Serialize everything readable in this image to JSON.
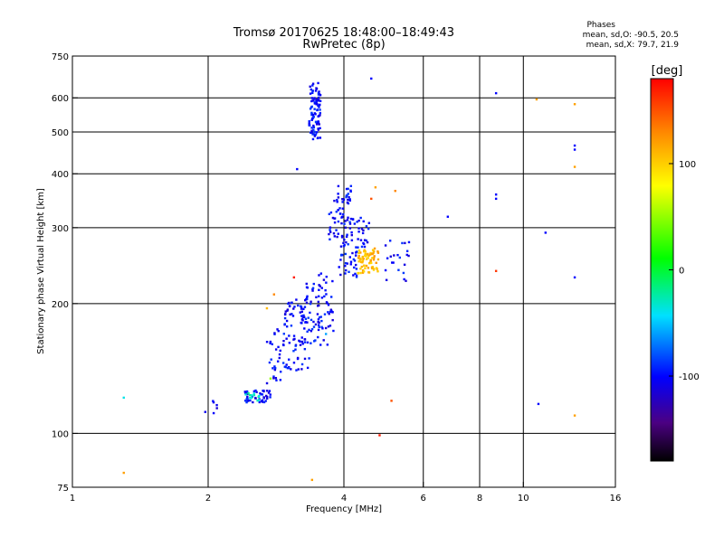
{
  "chart_data": {
    "type": "scatter",
    "title": "Tromsø 20170625 18:48:00–18:49:43",
    "subtitle": "RwPretec (8p)",
    "xlabel": "Frequency [MHz]",
    "ylabel": "Stationary phase Virtual Height [km]",
    "x_scale": "log",
    "y_scale": "log",
    "xlim": [
      1,
      16
    ],
    "ylim": [
      75,
      750
    ],
    "x_ticks": [
      1,
      2,
      4,
      6,
      8,
      10,
      16
    ],
    "y_ticks": [
      75,
      100,
      200,
      300,
      400,
      500,
      600,
      750
    ],
    "grid_x": [
      2,
      4,
      6,
      8,
      10
    ],
    "grid_y": [
      100,
      200,
      300,
      400,
      500,
      600
    ],
    "grid": true,
    "stats": {
      "heading": "Phases",
      "line1": "mean, sd,O: -90.5, 20.5",
      "line2": "mean, sd,X:  79.7, 21.9"
    },
    "colorbar": {
      "label": "[deg]",
      "range": [
        -180,
        180
      ],
      "ticks": [
        100,
        0,
        -100
      ],
      "tick_labels": [
        "100",
        "0",
        "-100"
      ]
    },
    "point_groups": [
      {
        "x": [
          3.35,
          3.55
        ],
        "y": [
          480,
          650
        ],
        "n": 95,
        "phase": -100
      },
      {
        "x": [
          3.85,
          4.15
        ],
        "y": [
          320,
          390
        ],
        "n": 20,
        "phase": -100
      },
      {
        "x": [
          3.7,
          4.1
        ],
        "y": [
          280,
          360
        ],
        "n": 35,
        "phase": -100
      },
      {
        "x": [
          3.95,
          4.55
        ],
        "y": [
          270,
          320
        ],
        "n": 40,
        "phase": -100
      },
      {
        "x": [
          3.9,
          4.3
        ],
        "y": [
          230,
          275
        ],
        "n": 35,
        "phase": -100
      },
      {
        "x": [
          4.3,
          4.8
        ],
        "y": [
          235,
          270
        ],
        "n": 70,
        "phase": 110
      },
      {
        "x": [
          4.9,
          5.6
        ],
        "y": [
          225,
          280
        ],
        "n": 22,
        "phase": -100
      },
      {
        "x": [
          3.5,
          3.8
        ],
        "y": [
          160,
          240
        ],
        "n": 35,
        "phase": -100
      },
      {
        "x": [
          3.2,
          3.6
        ],
        "y": [
          160,
          225
        ],
        "n": 55,
        "phase": -100
      },
      {
        "x": [
          2.95,
          3.35
        ],
        "y": [
          140,
          205
        ],
        "n": 70,
        "phase": -100
      },
      {
        "x": [
          2.7,
          3.0
        ],
        "y": [
          130,
          175
        ],
        "n": 35,
        "phase": -100
      },
      {
        "x": [
          2.4,
          2.75
        ],
        "y": [
          118,
          126
        ],
        "n": 45,
        "phase": -100
      },
      {
        "x": [
          2.4,
          2.6
        ],
        "y": [
          119,
          124
        ],
        "n": 12,
        "phase": -30
      },
      {
        "x": [
          1.95,
          2.1
        ],
        "y": [
          111,
          121
        ],
        "n": 6,
        "phase": -100
      }
    ],
    "points": [
      {
        "x": 4.6,
        "y": 665,
        "phase": -100
      },
      {
        "x": 8.7,
        "y": 615,
        "phase": -100
      },
      {
        "x": 10.7,
        "y": 595,
        "phase": 120
      },
      {
        "x": 13.0,
        "y": 580,
        "phase": 120
      },
      {
        "x": 13.0,
        "y": 465,
        "phase": -100
      },
      {
        "x": 13.0,
        "y": 455,
        "phase": -100
      },
      {
        "x": 13.0,
        "y": 415,
        "phase": 120
      },
      {
        "x": 8.7,
        "y": 358,
        "phase": -100
      },
      {
        "x": 8.7,
        "y": 350,
        "phase": -100
      },
      {
        "x": 6.8,
        "y": 318,
        "phase": -100
      },
      {
        "x": 11.2,
        "y": 292,
        "phase": -100
      },
      {
        "x": 13.0,
        "y": 230,
        "phase": -100
      },
      {
        "x": 8.7,
        "y": 238,
        "phase": 160
      },
      {
        "x": 4.7,
        "y": 372,
        "phase": 120
      },
      {
        "x": 5.2,
        "y": 365,
        "phase": 130
      },
      {
        "x": 4.6,
        "y": 350,
        "phase": 150
      },
      {
        "x": 3.15,
        "y": 410,
        "phase": -100
      },
      {
        "x": 3.4,
        "y": 78,
        "phase": 120
      },
      {
        "x": 1.3,
        "y": 121,
        "phase": -40
      },
      {
        "x": 1.3,
        "y": 81,
        "phase": 120
      },
      {
        "x": 5.1,
        "y": 119,
        "phase": 150
      },
      {
        "x": 4.8,
        "y": 99,
        "phase": 170
      },
      {
        "x": 10.8,
        "y": 117,
        "phase": -100
      },
      {
        "x": 13.0,
        "y": 110,
        "phase": 120
      },
      {
        "x": 2.8,
        "y": 210,
        "phase": 130
      },
      {
        "x": 2.7,
        "y": 195,
        "phase": 110
      },
      {
        "x": 3.1,
        "y": 230,
        "phase": 170
      },
      {
        "x": 3.65,
        "y": 170,
        "phase": -60
      },
      {
        "x": 2.75,
        "y": 134,
        "phase": 50
      }
    ]
  }
}
